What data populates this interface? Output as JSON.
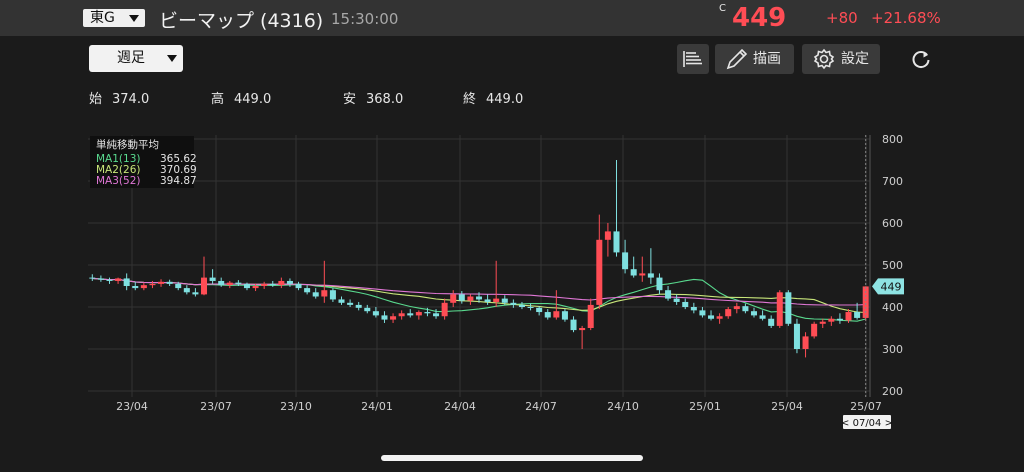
{
  "header": {
    "market": "東G",
    "name": "ビーマップ (4316)",
    "time": "15:30:00",
    "price_prefix": "C",
    "price": "449",
    "change": "+80",
    "change_pct": "+21.68%"
  },
  "toolbar": {
    "period": "週足",
    "draw_label": "描画",
    "settings_label": "設定"
  },
  "ohlc": [
    {
      "key": "始",
      "value": "374.0"
    },
    {
      "key": "高",
      "value": "449.0"
    },
    {
      "key": "安",
      "value": "368.0"
    },
    {
      "key": "終",
      "value": "449.0"
    }
  ],
  "legend": {
    "title": "単純移動平均",
    "items": [
      {
        "name": "MA1(13)",
        "value": "365.62",
        "color": "#59d98e"
      },
      {
        "name": "MA2(26)",
        "value": "370.69",
        "color": "#c8e67a"
      },
      {
        "name": "MA3(52)",
        "value": "394.87",
        "color": "#e077d6"
      }
    ]
  },
  "chart_data": {
    "type": "candlestick",
    "ylim": [
      200,
      800
    ],
    "yticks": [
      "800",
      "700",
      "600",
      "500",
      "400",
      "300",
      "200"
    ],
    "xticks": [
      "23/04",
      "23/07",
      "23/10",
      "24/01",
      "24/04",
      "24/07",
      "24/10",
      "25/01",
      "25/04",
      "25/07"
    ],
    "last_price_label": "449",
    "cursor_date": "< 07/04 >",
    "up_color": "#ff4d55",
    "down_color": "#7fe0e0",
    "candles": [
      [
        470,
        478,
        462,
        468
      ],
      [
        468,
        475,
        460,
        465
      ],
      [
        465,
        470,
        455,
        462
      ],
      [
        462,
        470,
        455,
        468
      ],
      [
        468,
        480,
        440,
        450
      ],
      [
        450,
        460,
        440,
        445
      ],
      [
        445,
        458,
        440,
        452
      ],
      [
        452,
        462,
        445,
        455
      ],
      [
        455,
        466,
        448,
        460
      ],
      [
        460,
        465,
        450,
        455
      ],
      [
        455,
        460,
        440,
        445
      ],
      [
        445,
        452,
        430,
        435
      ],
      [
        435,
        445,
        425,
        430
      ],
      [
        430,
        520,
        428,
        470
      ],
      [
        470,
        490,
        455,
        462
      ],
      [
        462,
        470,
        448,
        452
      ],
      [
        452,
        462,
        445,
        458
      ],
      [
        458,
        464,
        450,
        455
      ],
      [
        455,
        458,
        440,
        445
      ],
      [
        445,
        455,
        438,
        450
      ],
      [
        450,
        460,
        443,
        455
      ],
      [
        455,
        462,
        448,
        452
      ],
      [
        452,
        470,
        445,
        462
      ],
      [
        462,
        468,
        448,
        455
      ],
      [
        455,
        460,
        440,
        445
      ],
      [
        445,
        452,
        430,
        435
      ],
      [
        435,
        445,
        420,
        425
      ],
      [
        425,
        510,
        410,
        440
      ],
      [
        440,
        445,
        412,
        418
      ],
      [
        418,
        425,
        405,
        410
      ],
      [
        410,
        418,
        400,
        405
      ],
      [
        405,
        412,
        392,
        398
      ],
      [
        398,
        405,
        385,
        390
      ],
      [
        390,
        400,
        375,
        380
      ],
      [
        380,
        390,
        362,
        370
      ],
      [
        370,
        385,
        362,
        378
      ],
      [
        378,
        392,
        370,
        385
      ],
      [
        385,
        395,
        375,
        380
      ],
      [
        380,
        392,
        370,
        388
      ],
      [
        388,
        398,
        378,
        385
      ],
      [
        385,
        395,
        372,
        378
      ],
      [
        378,
        420,
        370,
        410
      ],
      [
        410,
        440,
        400,
        430
      ],
      [
        430,
        438,
        408,
        415
      ],
      [
        415,
        430,
        405,
        425
      ],
      [
        425,
        435,
        410,
        418
      ],
      [
        418,
        430,
        405,
        412
      ],
      [
        412,
        510,
        400,
        420
      ],
      [
        420,
        428,
        405,
        410
      ],
      [
        410,
        418,
        398,
        405
      ],
      [
        405,
        412,
        395,
        400
      ],
      [
        400,
        408,
        392,
        398
      ],
      [
        398,
        402,
        380,
        388
      ],
      [
        388,
        395,
        370,
        375
      ],
      [
        375,
        440,
        370,
        390
      ],
      [
        390,
        395,
        365,
        370
      ],
      [
        370,
        378,
        340,
        345
      ],
      [
        345,
        355,
        300,
        350
      ],
      [
        350,
        420,
        345,
        405
      ],
      [
        405,
        620,
        395,
        560
      ],
      [
        560,
        600,
        520,
        580
      ],
      [
        580,
        750,
        520,
        530
      ],
      [
        530,
        560,
        480,
        490
      ],
      [
        490,
        520,
        470,
        475
      ],
      [
        475,
        520,
        460,
        480
      ],
      [
        480,
        540,
        455,
        470
      ],
      [
        470,
        480,
        430,
        440
      ],
      [
        440,
        450,
        415,
        420
      ],
      [
        420,
        430,
        405,
        412
      ],
      [
        412,
        420,
        395,
        400
      ],
      [
        400,
        410,
        385,
        392
      ],
      [
        392,
        400,
        375,
        380
      ],
      [
        380,
        392,
        368,
        372
      ],
      [
        372,
        385,
        360,
        378
      ],
      [
        378,
        400,
        372,
        395
      ],
      [
        395,
        410,
        385,
        402
      ],
      [
        402,
        408,
        385,
        390
      ],
      [
        390,
        398,
        375,
        380
      ],
      [
        380,
        392,
        368,
        372
      ],
      [
        372,
        380,
        350,
        355
      ],
      [
        355,
        440,
        350,
        435
      ],
      [
        435,
        440,
        355,
        360
      ],
      [
        360,
        372,
        290,
        300
      ],
      [
        300,
        340,
        280,
        330
      ],
      [
        330,
        365,
        325,
        360
      ],
      [
        360,
        372,
        350,
        365
      ],
      [
        365,
        378,
        355,
        372
      ],
      [
        372,
        385,
        360,
        368
      ],
      [
        368,
        395,
        362,
        388
      ],
      [
        388,
        410,
        370,
        374
      ],
      [
        374,
        449,
        368,
        449
      ]
    ]
  }
}
